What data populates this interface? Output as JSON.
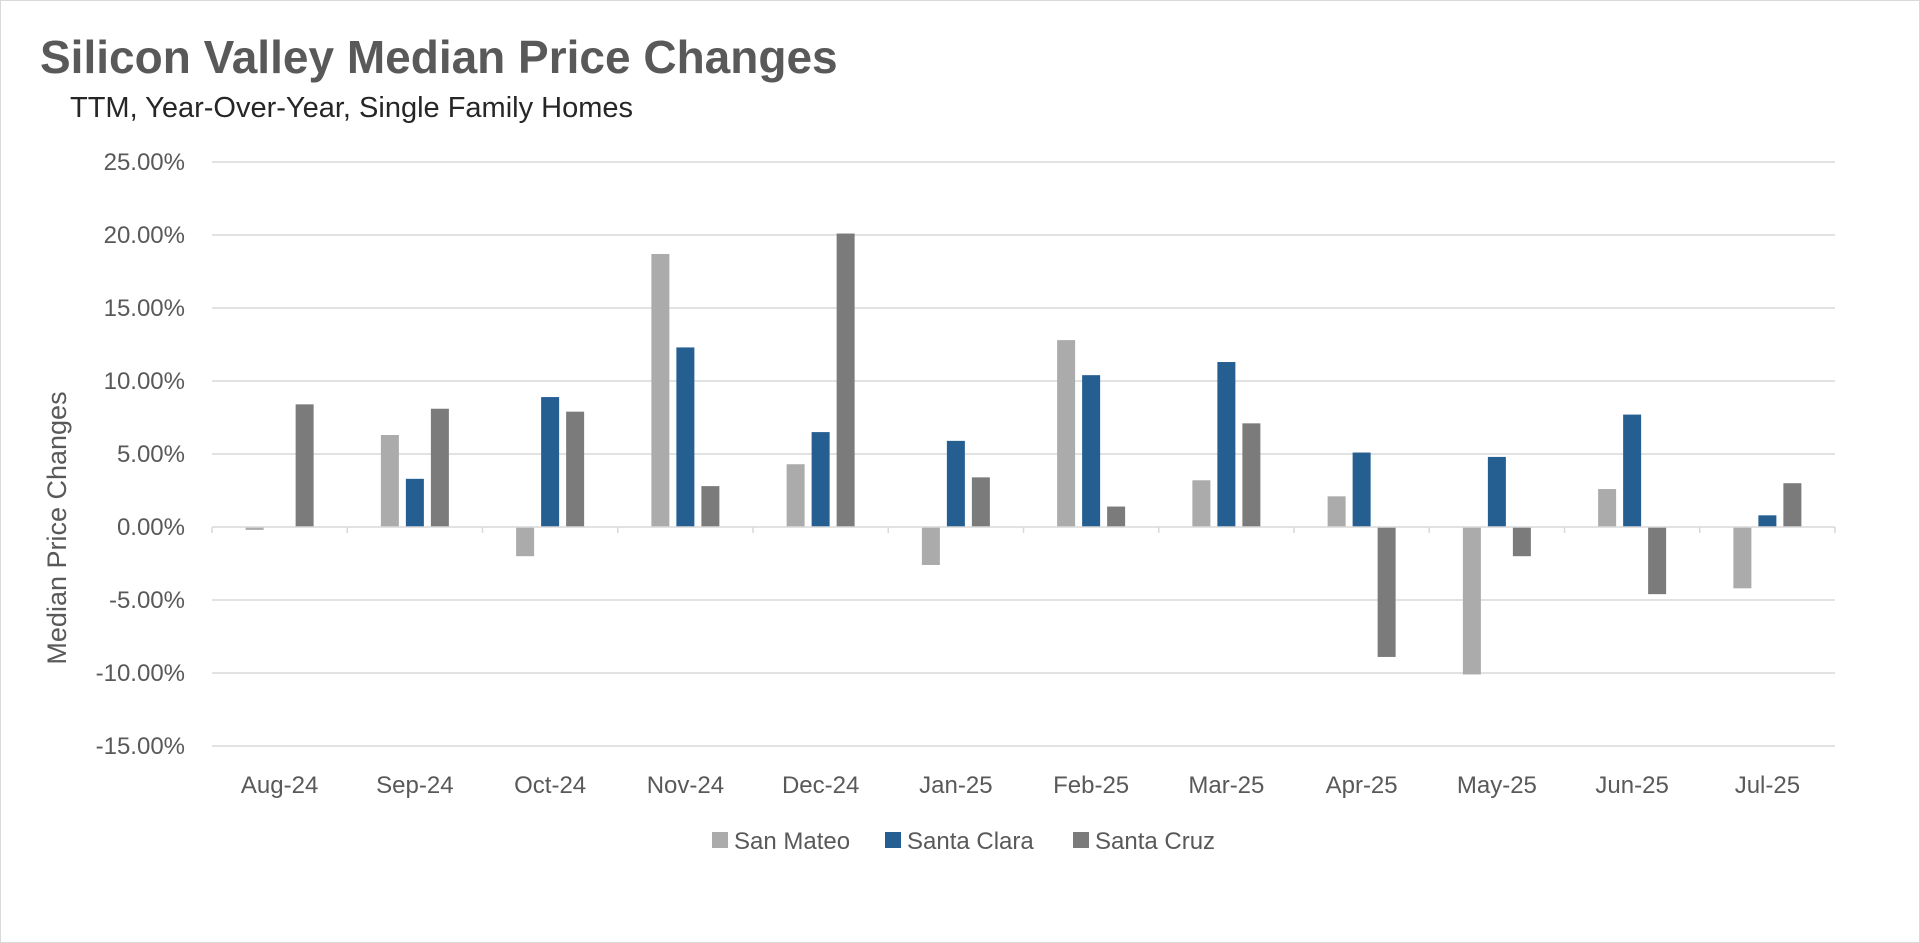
{
  "chart_data": {
    "type": "bar",
    "title": "Silicon Valley Median Price Changes",
    "subtitle": "TTM, Year-Over-Year, Single Family Homes",
    "ylabel": "Median Price Changes",
    "xlabel": "",
    "ylim": [
      -15,
      25
    ],
    "yticks": [
      25,
      20,
      15,
      10,
      5,
      0,
      -5,
      -10,
      -15
    ],
    "ytick_labels": [
      "25.00%",
      "20.00%",
      "15.00%",
      "10.00%",
      "5.00%",
      "0.00%",
      "-5.00%",
      "-10.00%",
      "-15.00%"
    ],
    "grid": true,
    "legend_position": "bottom",
    "categories": [
      "Aug-24",
      "Sep-24",
      "Oct-24",
      "Nov-24",
      "Dec-24",
      "Jan-25",
      "Feb-25",
      "Mar-25",
      "Apr-25",
      "May-25",
      "Jun-25",
      "Jul-25"
    ],
    "series": [
      {
        "name": "San Mateo",
        "color": "#ababab",
        "values": [
          -0.2,
          6.3,
          -2.0,
          18.7,
          4.3,
          -2.6,
          12.8,
          3.2,
          2.1,
          -10.1,
          2.6,
          -4.2
        ]
      },
      {
        "name": "Santa Clara",
        "color": "#255e91",
        "values": [
          0.0,
          3.3,
          8.9,
          12.3,
          6.5,
          5.9,
          10.4,
          11.3,
          5.1,
          4.8,
          7.7,
          0.8
        ]
      },
      {
        "name": "Santa Cruz",
        "color": "#7b7b7b",
        "values": [
          8.4,
          8.1,
          7.9,
          2.8,
          20.1,
          3.4,
          1.4,
          7.1,
          -8.9,
          -2.0,
          -4.6,
          3.0
        ]
      }
    ]
  }
}
